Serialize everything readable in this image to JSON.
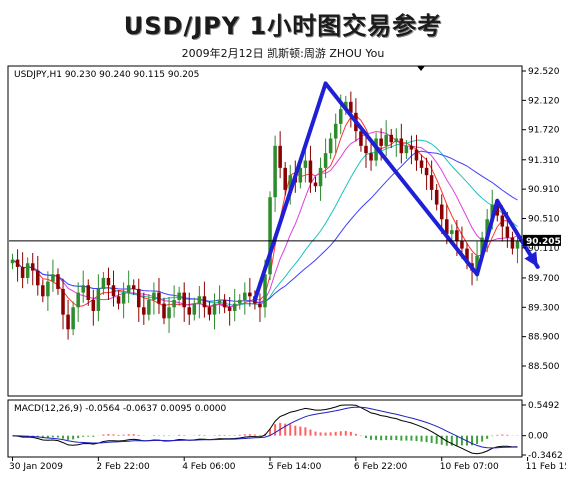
{
  "header": {
    "title": "USD/JPY 1小时图交易参考",
    "subtitle": "2009年2月12日  凯斯顿:周游 ZHOU You"
  },
  "colors": {
    "bull_candle": "#2e8b2e",
    "bear_candle": "#8b0000",
    "trend_arrow": "#1f1fd6",
    "ma_fast": "#ff3333",
    "ma_mid": "#e040e0",
    "ma_slow": "#20c0c0",
    "ma_slowest": "#4040ff",
    "macd_pos": "#ff6060",
    "macd_neg": "#40a040"
  },
  "price_panel": {
    "info": "USDJPY,H1  90.230 90.240 90.115 90.205",
    "current_price_label": "90.205",
    "current_price": 90.205
  },
  "macd_panel": {
    "info": "MACD(12,26,9) -0.0564 -0.0637 0.0095 0.0000",
    "tick_labels": [
      "0.5492",
      "0.00",
      "-0.3462"
    ],
    "ylim": [
      -0.3462,
      0.5492
    ]
  },
  "chart_data": {
    "type": "line",
    "symbol": "USDJPY",
    "timeframe": "H1",
    "ylim": [
      88.5,
      92.52
    ],
    "y_ticks": [
      92.52,
      92.12,
      91.72,
      91.31,
      90.91,
      90.51,
      90.11,
      89.7,
      89.3,
      88.9,
      88.5
    ],
    "y_tick_labels": [
      "92.520",
      "92.120",
      "91.720",
      "91.310",
      "90.910",
      "90.510",
      "90.110",
      "89.700",
      "89.300",
      "88.900",
      "88.500"
    ],
    "x_tick_labels": [
      "30 Jan 2009",
      "2 Feb 22:00",
      "4 Feb 06:00",
      "5 Feb 14:00",
      "6 Feb 22:00",
      "10 Feb 07:00",
      "11 Feb 15:00"
    ],
    "x_ticks": [
      0,
      17,
      34,
      51,
      68,
      85,
      102
    ],
    "close": [
      89.95,
      89.85,
      89.7,
      89.9,
      89.8,
      89.6,
      89.45,
      89.65,
      89.75,
      89.55,
      89.2,
      89.0,
      89.3,
      89.5,
      89.6,
      89.4,
      89.25,
      89.55,
      89.7,
      89.6,
      89.45,
      89.35,
      89.5,
      89.6,
      89.55,
      89.3,
      89.2,
      89.4,
      89.5,
      89.35,
      89.15,
      89.3,
      89.4,
      89.5,
      89.3,
      89.2,
      89.35,
      89.45,
      89.3,
      89.2,
      89.35,
      89.4,
      89.3,
      89.25,
      89.35,
      89.4,
      89.5,
      89.45,
      89.35,
      89.3,
      89.75,
      90.8,
      91.5,
      91.2,
      90.9,
      91.1,
      91.0,
      91.2,
      91.3,
      91.0,
      90.95,
      91.2,
      91.4,
      91.6,
      91.8,
      92.0,
      92.1,
      91.95,
      91.7,
      91.5,
      91.4,
      91.3,
      91.6,
      91.5,
      91.65,
      91.55,
      91.6,
      91.4,
      91.5,
      91.45,
      91.3,
      91.2,
      91.1,
      90.9,
      90.7,
      90.5,
      90.3,
      90.35,
      90.2,
      90.1,
      89.9,
      89.8,
      90.0,
      90.25,
      90.5,
      90.7,
      90.55,
      90.4,
      90.25,
      90.1,
      90.205
    ],
    "arrows": [
      {
        "from": {
          "x": 48,
          "y": 89.4
        },
        "to": {
          "x": 62,
          "y": 92.35
        }
      },
      {
        "from": {
          "x": 62,
          "y": 92.35
        },
        "to": {
          "x": 92,
          "y": 89.75
        }
      },
      {
        "from": {
          "x": 92,
          "y": 89.75
        },
        "to": {
          "x": 96,
          "y": 90.75
        }
      },
      {
        "from": {
          "x": 96,
          "y": 90.75
        },
        "to": {
          "x": 104,
          "y": 89.85
        }
      }
    ]
  }
}
